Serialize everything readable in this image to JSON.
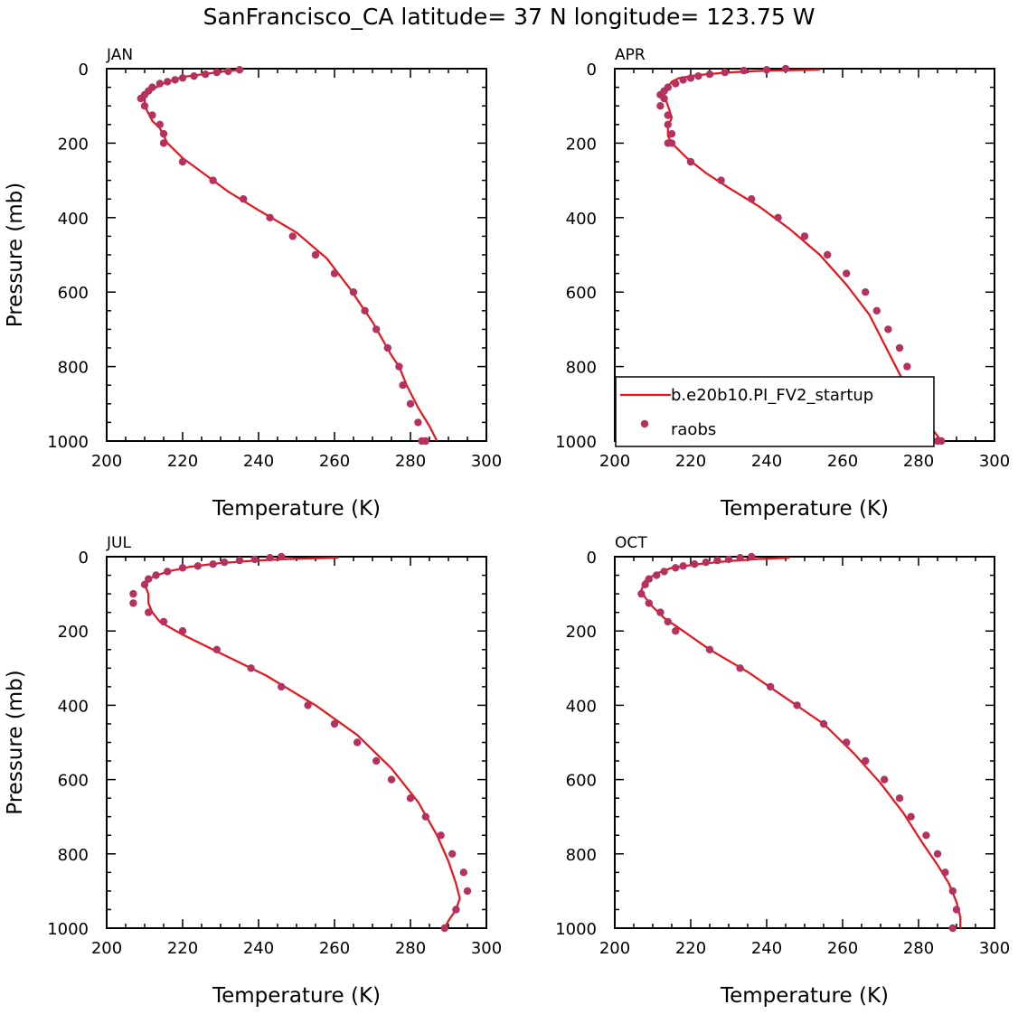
{
  "title": "SanFrancisco_CA  latitude= 37 N longitude= 123.75 W",
  "colors": {
    "model": "#e8141b",
    "obs": "#b5315f"
  },
  "chart_data": [
    {
      "panel": "JAN",
      "type": "line",
      "xlabel": "Temperature (K)",
      "ylabel": "Pressure (mb)",
      "xlim": [
        200,
        300
      ],
      "ylim": [
        1000,
        0
      ],
      "xticks": [
        "200",
        "220",
        "240",
        "260",
        "280",
        "300"
      ],
      "yticks": [
        "0",
        "200",
        "400",
        "600",
        "800",
        "1000"
      ],
      "series": [
        {
          "kind": "line",
          "x": [
            236,
            231,
            226,
            220,
            216,
            213,
            211,
            210,
            210,
            211,
            212,
            214,
            215,
            216,
            220,
            226,
            232,
            240,
            250,
            258,
            264,
            270,
            275,
            277,
            279,
            282,
            285,
            287
          ],
          "y": [
            2,
            7,
            14,
            22,
            35,
            50,
            65,
            80,
            100,
            120,
            140,
            160,
            180,
            200,
            240,
            285,
            330,
            380,
            440,
            510,
            590,
            680,
            770,
            800,
            850,
            910,
            960,
            1000
          ]
        },
        {
          "kind": "points",
          "x": [
            235,
            232,
            229,
            226,
            223,
            220,
            218,
            216,
            214,
            212,
            211,
            210,
            209,
            210,
            212,
            214,
            215,
            215,
            220,
            228,
            236,
            243,
            249,
            255,
            260,
            265,
            268,
            271,
            274,
            277,
            278,
            280,
            282,
            283,
            284
          ],
          "y": [
            3,
            7,
            10,
            15,
            20,
            25,
            30,
            35,
            40,
            50,
            60,
            70,
            80,
            100,
            125,
            150,
            175,
            200,
            250,
            300,
            350,
            400,
            450,
            500,
            550,
            600,
            650,
            700,
            750,
            800,
            850,
            900,
            950,
            1000,
            1000
          ]
        }
      ]
    },
    {
      "panel": "APR",
      "type": "line",
      "xlabel": "Temperature (K)",
      "ylabel": "",
      "xlim": [
        200,
        300
      ],
      "ylim": [
        1000,
        0
      ],
      "xticks": [
        "200",
        "220",
        "240",
        "260",
        "280",
        "300"
      ],
      "yticks": [
        "0",
        "200",
        "400",
        "600",
        "800",
        "1000"
      ],
      "legend": {
        "position": "bottom",
        "entries": [
          "b.e20b10.PI_FV2_startup",
          "raobs"
        ]
      },
      "series": [
        {
          "kind": "line",
          "name": "b.e20b10.PI_FV2_startup",
          "x": [
            254,
            240,
            230,
            222,
            217,
            215,
            214,
            213,
            214,
            215,
            214,
            214,
            215,
            219,
            224,
            230,
            238,
            246,
            254,
            261,
            267,
            271,
            275,
            278,
            281,
            283,
            286
          ],
          "y": [
            3,
            5,
            10,
            17,
            25,
            35,
            50,
            70,
            100,
            130,
            160,
            180,
            200,
            240,
            280,
            320,
            370,
            430,
            500,
            580,
            660,
            740,
            820,
            870,
            920,
            960,
            1000
          ]
        },
        {
          "kind": "points",
          "name": "raobs",
          "x": [
            245,
            240,
            234,
            229,
            225,
            222,
            220,
            218,
            216,
            214,
            213,
            212,
            212,
            213,
            214,
            214,
            215,
            215,
            214,
            220,
            228,
            236,
            243,
            250,
            256,
            261,
            266,
            269,
            272,
            275,
            277,
            279,
            281,
            283,
            285,
            286
          ],
          "y": [
            0,
            3,
            5,
            10,
            15,
            20,
            25,
            30,
            40,
            50,
            60,
            70,
            100,
            80,
            125,
            150,
            175,
            200,
            200,
            250,
            300,
            350,
            400,
            450,
            500,
            550,
            600,
            650,
            700,
            750,
            800,
            850,
            900,
            950,
            1000,
            1000
          ]
        }
      ]
    },
    {
      "panel": "JUL",
      "type": "line",
      "xlabel": "Temperature (K)",
      "ylabel": "Pressure (mb)",
      "xlim": [
        200,
        300
      ],
      "ylim": [
        1000,
        0
      ],
      "xticks": [
        "200",
        "220",
        "240",
        "260",
        "280",
        "300"
      ],
      "yticks": [
        "0",
        "200",
        "400",
        "600",
        "800",
        "1000"
      ],
      "series": [
        {
          "kind": "line",
          "x": [
            261,
            250,
            240,
            230,
            222,
            216,
            212,
            210,
            211,
            211,
            212,
            214,
            220,
            230,
            242,
            255,
            266,
            275,
            282,
            287,
            290,
            292,
            293,
            292,
            290,
            289
          ],
          "y": [
            3,
            5,
            10,
            17,
            27,
            40,
            55,
            75,
            100,
            125,
            150,
            175,
            210,
            260,
            320,
            400,
            480,
            570,
            660,
            750,
            820,
            880,
            920,
            950,
            980,
            1000
          ]
        },
        {
          "kind": "points",
          "x": [
            246,
            243,
            239,
            235,
            231,
            228,
            224,
            220,
            216,
            213,
            211,
            210,
            207,
            207,
            211,
            215,
            220,
            229,
            238,
            246,
            253,
            260,
            266,
            271,
            275,
            280,
            284,
            288,
            291,
            294,
            295,
            292,
            289
          ],
          "y": [
            0,
            3,
            7,
            10,
            15,
            20,
            25,
            30,
            40,
            50,
            60,
            75,
            100,
            125,
            150,
            175,
            200,
            250,
            300,
            350,
            400,
            450,
            500,
            550,
            600,
            650,
            700,
            750,
            800,
            850,
            900,
            950,
            1000
          ]
        }
      ]
    },
    {
      "panel": "OCT",
      "type": "line",
      "xlabel": "Temperature (K)",
      "ylabel": "",
      "xlim": [
        200,
        300
      ],
      "ylim": [
        1000,
        0
      ],
      "xticks": [
        "200",
        "220",
        "240",
        "260",
        "280",
        "300"
      ],
      "yticks": [
        "0",
        "200",
        "400",
        "600",
        "800",
        "1000"
      ],
      "series": [
        {
          "kind": "line",
          "x": [
            246,
            238,
            230,
            222,
            215,
            211,
            208,
            207,
            208,
            210,
            213,
            218,
            225,
            235,
            245,
            255,
            263,
            270,
            276,
            281,
            285,
            288,
            290,
            291,
            291
          ],
          "y": [
            3,
            6,
            12,
            20,
            30,
            45,
            65,
            90,
            110,
            135,
            165,
            200,
            250,
            310,
            380,
            450,
            530,
            610,
            690,
            770,
            830,
            880,
            930,
            970,
            1000
          ]
        },
        {
          "kind": "points",
          "x": [
            236,
            233,
            230,
            227,
            224,
            221,
            218,
            216,
            213,
            211,
            209,
            207,
            208,
            209,
            212,
            214,
            216,
            225,
            233,
            241,
            248,
            255,
            261,
            266,
            271,
            275,
            278,
            282,
            285,
            287,
            289,
            290,
            289
          ],
          "y": [
            0,
            3,
            7,
            10,
            15,
            20,
            25,
            30,
            40,
            50,
            60,
            100,
            75,
            125,
            150,
            175,
            200,
            250,
            300,
            350,
            400,
            450,
            500,
            550,
            600,
            650,
            700,
            750,
            800,
            850,
            900,
            950,
            1000
          ]
        }
      ]
    }
  ]
}
